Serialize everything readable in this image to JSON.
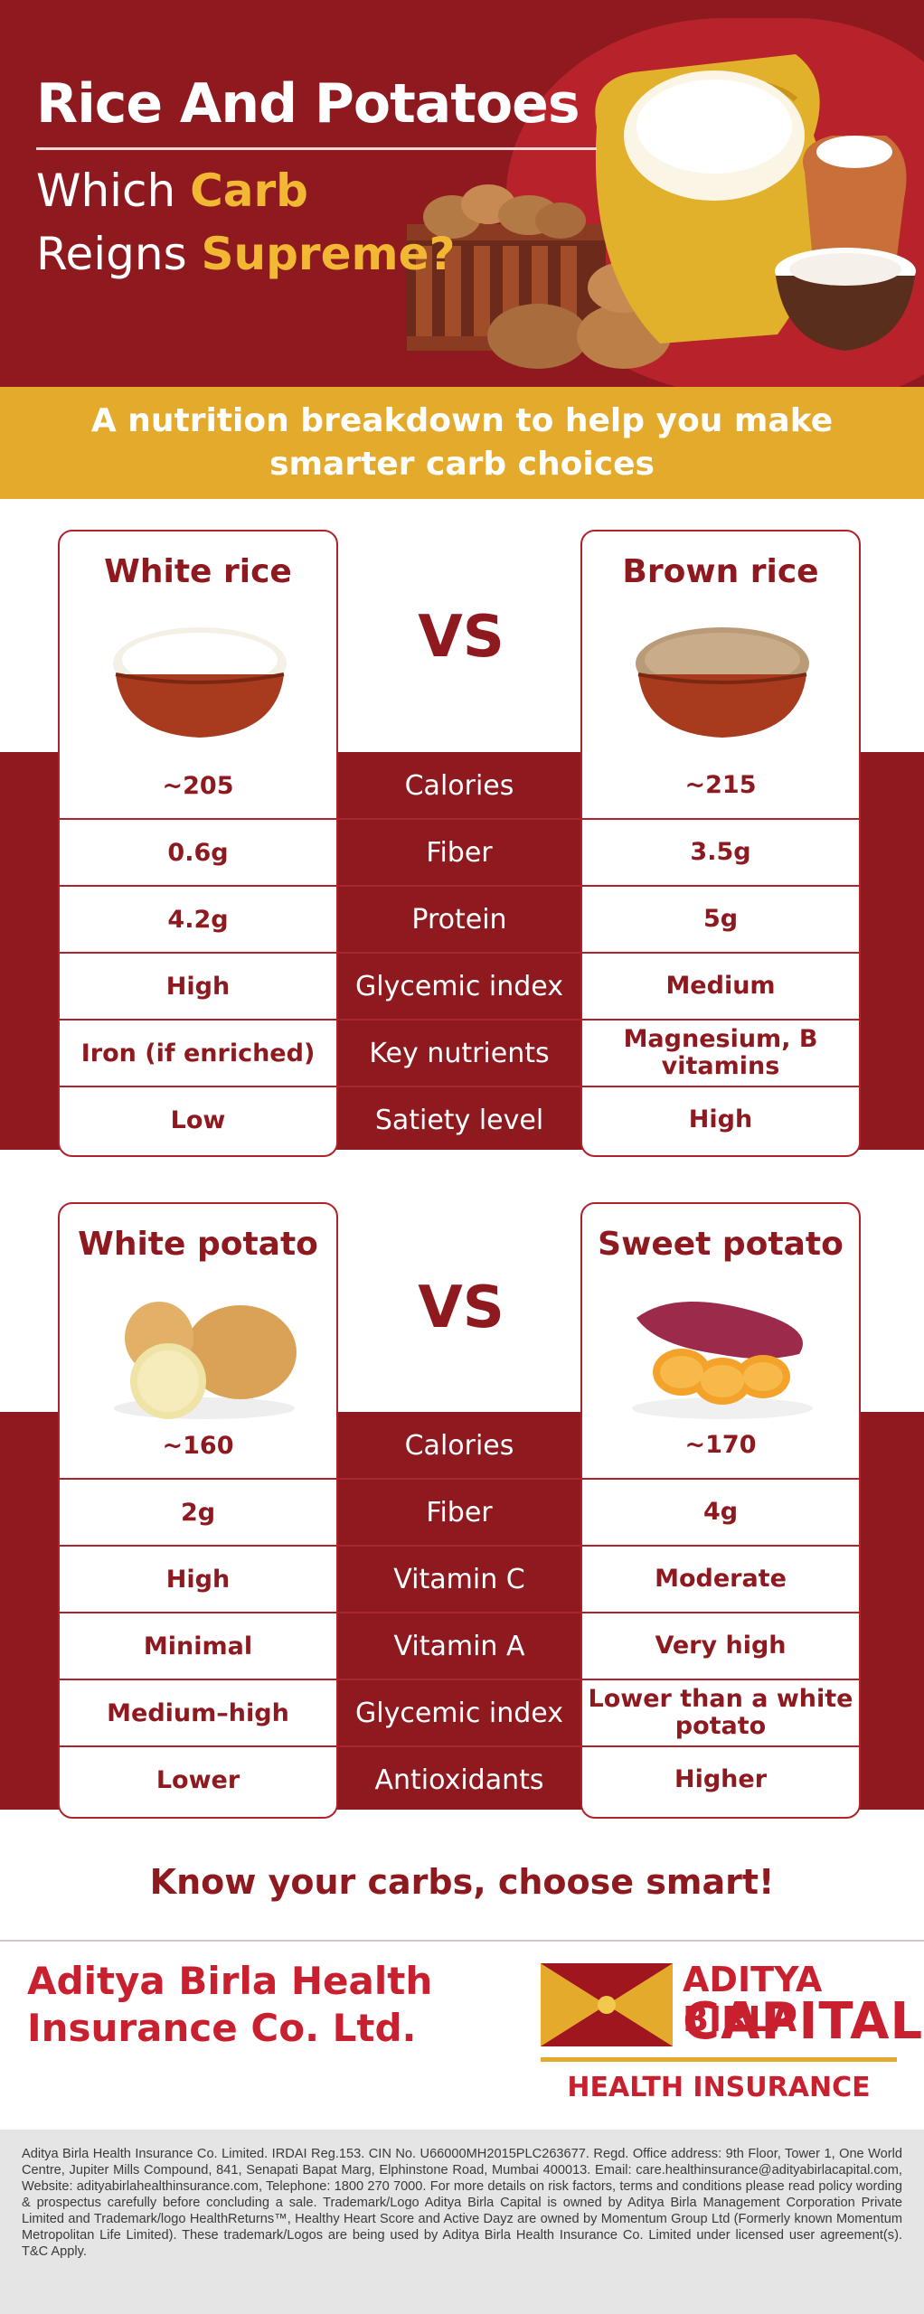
{
  "header": {
    "title": "Rice And Potatoes",
    "subtitle_line1_a": "Which ",
    "subtitle_line1_b": "Carb",
    "subtitle_line2_a": "Reigns ",
    "subtitle_line2_b": "Supreme?"
  },
  "banner": {
    "text": "A nutrition breakdown to help you make smarter carb choices"
  },
  "rice": {
    "left_name": "White rice",
    "right_name": "Brown rice",
    "vs": "VS",
    "rows": [
      {
        "left": "~205",
        "label": "Calories",
        "right": "~215"
      },
      {
        "left": "0.6g",
        "label": "Fiber",
        "right": "3.5g"
      },
      {
        "left": "4.2g",
        "label": "Protein",
        "right": "5g"
      },
      {
        "left": "High",
        "label": "Glycemic index",
        "right": "Medium"
      },
      {
        "left": "Iron (if enriched)",
        "label": "Key nutrients",
        "right": "Magnesium, B vitamins"
      },
      {
        "left": "Low",
        "label": "Satiety level",
        "right": "High"
      }
    ]
  },
  "potato": {
    "left_name": "White potato",
    "right_name": "Sweet potato",
    "vs": "VS",
    "rows": [
      {
        "left": "~160",
        "label": "Calories",
        "right": "~170"
      },
      {
        "left": "2g",
        "label": "Fiber",
        "right": "4g"
      },
      {
        "left": "High",
        "label": "Vitamin C",
        "right": "Moderate"
      },
      {
        "left": "Minimal",
        "label": "Vitamin A",
        "right": "Very high"
      },
      {
        "left": "Medium–high",
        "label": "Glycemic index",
        "right": "Lower than a white potato"
      },
      {
        "left": "Lower",
        "label": "Antioxidants",
        "right": "Higher"
      }
    ]
  },
  "cta": "Know your carbs, choose smart!",
  "footer": {
    "brand_line1": "Aditya Birla Health",
    "brand_line2": "Insurance Co. Ltd.",
    "logo_line1": "ADITYA BIRLA",
    "logo_line2": "CAPITAL",
    "logo_line3": "HEALTH INSURANCE",
    "disclaimer": "Aditya Birla Health Insurance Co. Limited. IRDAI Reg.153. CIN No. U66000MH2015PLC263677. Regd. Office address: 9th Floor, Tower 1, One World Centre, Jupiter Mills Compound, 841, Senapati Bapat Marg, Elphinstone Road, Mumbai 400013. Email: care.healthinsurance@adityabirlacapital.com, Website: adityabirlahealthinsurance.com, Telephone: 1800 270 7000. For more details on risk factors, terms and conditions please read policy wording & prospectus carefully before concluding a sale. Trademark/Logo Aditya Birla Capital is owned by Aditya Birla Management Corporation Private Limited and Trademark/logo HealthReturns™, Healthy Heart Score and Active Dayz are owned by Momentum Group Ltd (Formerly known Momentum Metropolitan Life Limited). These trademark/Logos are being used by Aditya Birla Health Insurance Co. Limited under licensed user agreement(s). T&C Apply."
  },
  "colors": {
    "maroon": "#8e1a20",
    "red_accent": "#c8202e",
    "gold": "#e4aa2c",
    "white": "#ffffff"
  }
}
